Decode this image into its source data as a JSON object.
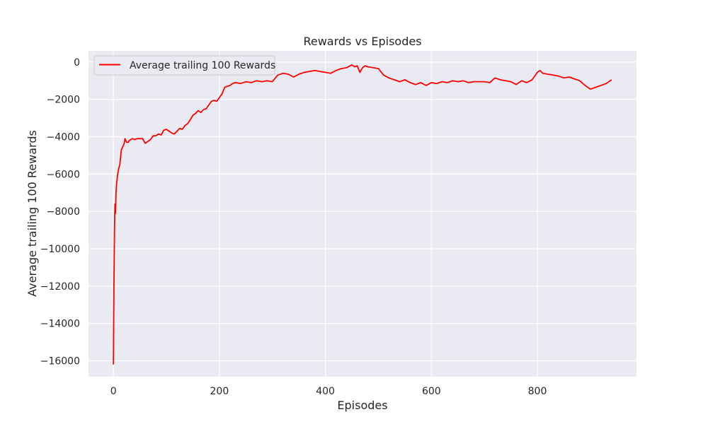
{
  "chart_data": {
    "type": "line",
    "title": "Rewards vs Episodes",
    "xlabel": "Episodes",
    "ylabel": "Average trailing 100 Rewards",
    "xlim": [
      -47,
      987
    ],
    "ylim": [
      -16850,
      600
    ],
    "xticks": [
      0,
      200,
      400,
      600,
      800
    ],
    "xtick_labels": [
      "0",
      "200",
      "400",
      "600",
      "800"
    ],
    "yticks": [
      0,
      -2000,
      -4000,
      -6000,
      -8000,
      -10000,
      -12000,
      -14000,
      -16000
    ],
    "ytick_labels": [
      "0",
      "−2000",
      "−4000",
      "−6000",
      "−8000",
      "−10000",
      "−12000",
      "−14000",
      "−16000"
    ],
    "grid": true,
    "legend": {
      "position": "top-left",
      "entries": [
        "Average trailing 100 Rewards"
      ]
    },
    "colors": {
      "series": "#ff0000",
      "plot_bg": "#eaeaf2",
      "grid": "#ffffff"
    },
    "series": [
      {
        "name": "Average trailing 100 Rewards",
        "x": [
          0,
          1,
          2,
          3,
          4,
          5,
          6,
          8,
          10,
          12,
          15,
          18,
          20,
          22,
          25,
          28,
          30,
          33,
          36,
          40,
          45,
          50,
          55,
          60,
          65,
          70,
          75,
          80,
          85,
          90,
          95,
          100,
          105,
          110,
          115,
          120,
          125,
          130,
          135,
          140,
          145,
          150,
          155,
          160,
          165,
          170,
          175,
          180,
          185,
          190,
          195,
          200,
          205,
          210,
          215,
          220,
          225,
          230,
          240,
          250,
          260,
          270,
          280,
          290,
          300,
          310,
          320,
          330,
          340,
          350,
          360,
          370,
          380,
          390,
          400,
          410,
          420,
          430,
          440,
          450,
          455,
          460,
          465,
          470,
          475,
          480,
          490,
          500,
          510,
          520,
          530,
          540,
          550,
          560,
          570,
          580,
          590,
          600,
          610,
          620,
          630,
          640,
          650,
          660,
          670,
          680,
          690,
          700,
          710,
          720,
          730,
          740,
          750,
          760,
          770,
          780,
          790,
          800,
          805,
          810,
          820,
          830,
          840,
          850,
          860,
          870,
          880,
          890,
          900,
          910,
          920,
          930,
          940
        ],
        "y": [
          -16200,
          -12000,
          -9000,
          -7600,
          -8100,
          -7000,
          -6500,
          -6000,
          -5700,
          -5500,
          -4700,
          -4500,
          -4400,
          -4100,
          -4300,
          -4300,
          -4200,
          -4150,
          -4100,
          -4150,
          -4100,
          -4100,
          -4100,
          -4350,
          -4250,
          -4150,
          -3950,
          -3950,
          -3850,
          -3900,
          -3650,
          -3600,
          -3700,
          -3800,
          -3850,
          -3700,
          -3550,
          -3600,
          -3400,
          -3300,
          -3100,
          -2850,
          -2750,
          -2600,
          -2700,
          -2550,
          -2500,
          -2300,
          -2100,
          -2050,
          -2100,
          -1900,
          -1700,
          -1350,
          -1300,
          -1250,
          -1150,
          -1100,
          -1150,
          -1050,
          -1100,
          -1000,
          -1050,
          -1000,
          -1050,
          -700,
          -600,
          -650,
          -800,
          -650,
          -550,
          -500,
          -450,
          -500,
          -550,
          -600,
          -450,
          -350,
          -300,
          -150,
          -250,
          -200,
          -550,
          -300,
          -200,
          -250,
          -300,
          -350,
          -700,
          -850,
          -950,
          -1050,
          -950,
          -1100,
          -1200,
          -1100,
          -1250,
          -1100,
          -1150,
          -1050,
          -1100,
          -1000,
          -1050,
          -1000,
          -1100,
          -1050,
          -1050,
          -1050,
          -1100,
          -850,
          -950,
          -1000,
          -1050,
          -1200,
          -1000,
          -1100,
          -950,
          -550,
          -450,
          -600,
          -650,
          -700,
          -750,
          -850,
          -800,
          -900,
          -1000,
          -1250,
          -1450,
          -1350,
          -1250,
          -1150,
          -950
        ]
      }
    ]
  }
}
